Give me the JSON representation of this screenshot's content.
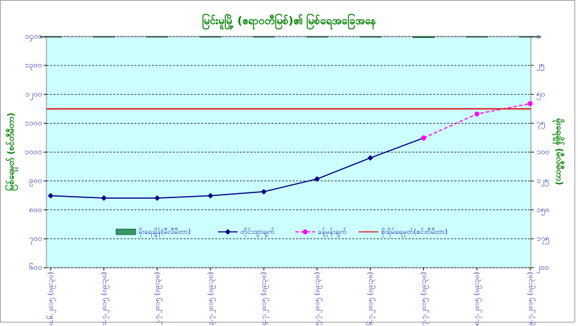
{
  "chart_data": {
    "type": "line",
    "title": "မြင်းမူမြို့ (ဧရာဝတီမြစ်)၏ မြစ်ရေအခြေအနေ",
    "y_label": "မြစ်ရေမှတ် (စင်တီမီတာ)",
    "y2_label": "မိုးရေချိန် (မီလီမီတာ)",
    "categories": [
      "၃၀.၆.၂၀၁၅ (၀၉:၃၀)",
      "၁.၇.၂၀၁၅ (၀၉:၃၀)",
      "၂.၇.၂၀၁၅ (၀၉:၃၀)",
      "၃.၇.၂၀၁၅ (၀၉:၃၀)",
      "၄.၇.၂၀၁၅ (၀၉:၃၀)",
      "၅.၇.၂၀၁၅ (၀၉:၃၀)",
      "၆.၇.၂၀၁၅ (၀၉:၃၀)",
      "၇.၇.၂၀၁၅ (၀၉:၃၀)",
      "၈.၇.၂၀၁၅ (၀၉:၃၀)",
      "၉.၇.၂၀၁၅ (၀၉:၃၀)"
    ],
    "series": [
      {
        "name": "မိုးရေချိန်(မီလီမီတာ)",
        "type": "bar",
        "axis": "y2",
        "color": "#339966",
        "values": [
          0,
          0,
          0,
          0,
          0,
          0,
          0,
          1,
          0,
          0
        ]
      },
      {
        "name": "တိုင်းထွာချက်",
        "type": "line",
        "color": "#000080",
        "dash": false,
        "marker": "diamond",
        "values": [
          849,
          841,
          841,
          849,
          863,
          907,
          980,
          1049,
          null,
          null
        ]
      },
      {
        "name": "ခန့်မှန်းချက်",
        "type": "line",
        "color": "#ff00ff",
        "dash": true,
        "marker": "circle",
        "values": [
          null,
          null,
          null,
          null,
          null,
          null,
          null,
          1049,
          1132,
          1168
        ]
      },
      {
        "name": "စိုးရိမ်ရေမှတ်(စင်တီမီတာ)",
        "type": "hline",
        "color": "#e02020",
        "value": 1150
      }
    ],
    "ylim": [
      600,
      1400
    ],
    "yticks": [
      {
        "value": 600,
        "label": "၆၀၀"
      },
      {
        "value": 700,
        "label": "၇၀၀"
      },
      {
        "value": 800,
        "label": "၈၀၀"
      },
      {
        "value": 900,
        "label": "၉၀၀"
      },
      {
        "value": 1000,
        "label": "၁၀၀၀"
      },
      {
        "value": 1100,
        "label": "၁၁၀၀"
      },
      {
        "value": 1200,
        "label": "၁၂၀၀"
      },
      {
        "value": 1300,
        "label": "၁၃၀၀"
      },
      {
        "value": 1400,
        "label": "၁၄၀၀"
      }
    ],
    "y2lim": [
      200,
      0
    ],
    "y2ticks": [
      {
        "value": 0,
        "label": "၀"
      },
      {
        "value": 25,
        "label": "၂၅"
      },
      {
        "value": 50,
        "label": "၅၀"
      },
      {
        "value": 75,
        "label": "၇၅"
      },
      {
        "value": 100,
        "label": "၁၀၀"
      },
      {
        "value": 125,
        "label": "၁၂၅"
      },
      {
        "value": 150,
        "label": "၁၅၀"
      },
      {
        "value": 175,
        "label": "၁၇၅"
      },
      {
        "value": 200,
        "label": "၂၀၀"
      }
    ],
    "grid": true,
    "legend": "bottom",
    "plot_background": "#ccffff"
  }
}
